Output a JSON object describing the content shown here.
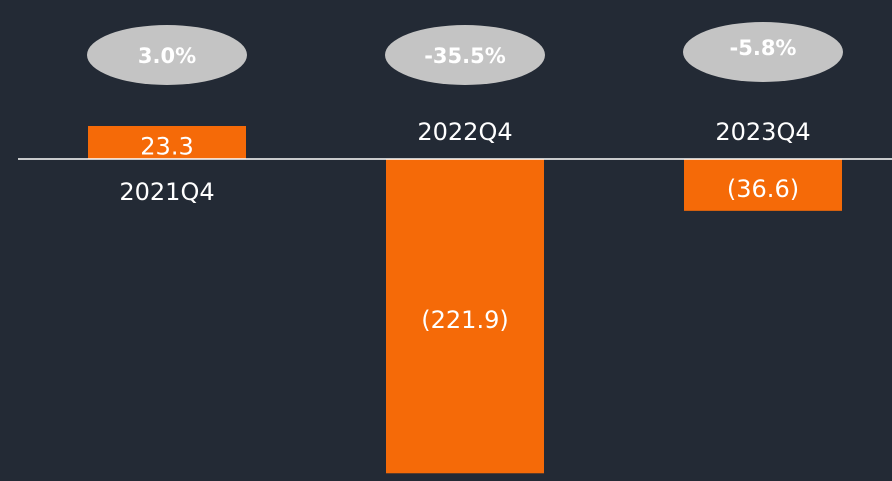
{
  "chart_data": {
    "type": "bar",
    "categories": [
      "2021Q4",
      "2022Q4",
      "2023Q4"
    ],
    "values": [
      23.3,
      -221.9,
      -36.6
    ],
    "value_labels": [
      "23.3",
      "(221.9)",
      "(36.6)"
    ],
    "annotations": [
      "3.0%",
      "-35.5%",
      "-5.8%"
    ],
    "color": "#f56a08"
  }
}
